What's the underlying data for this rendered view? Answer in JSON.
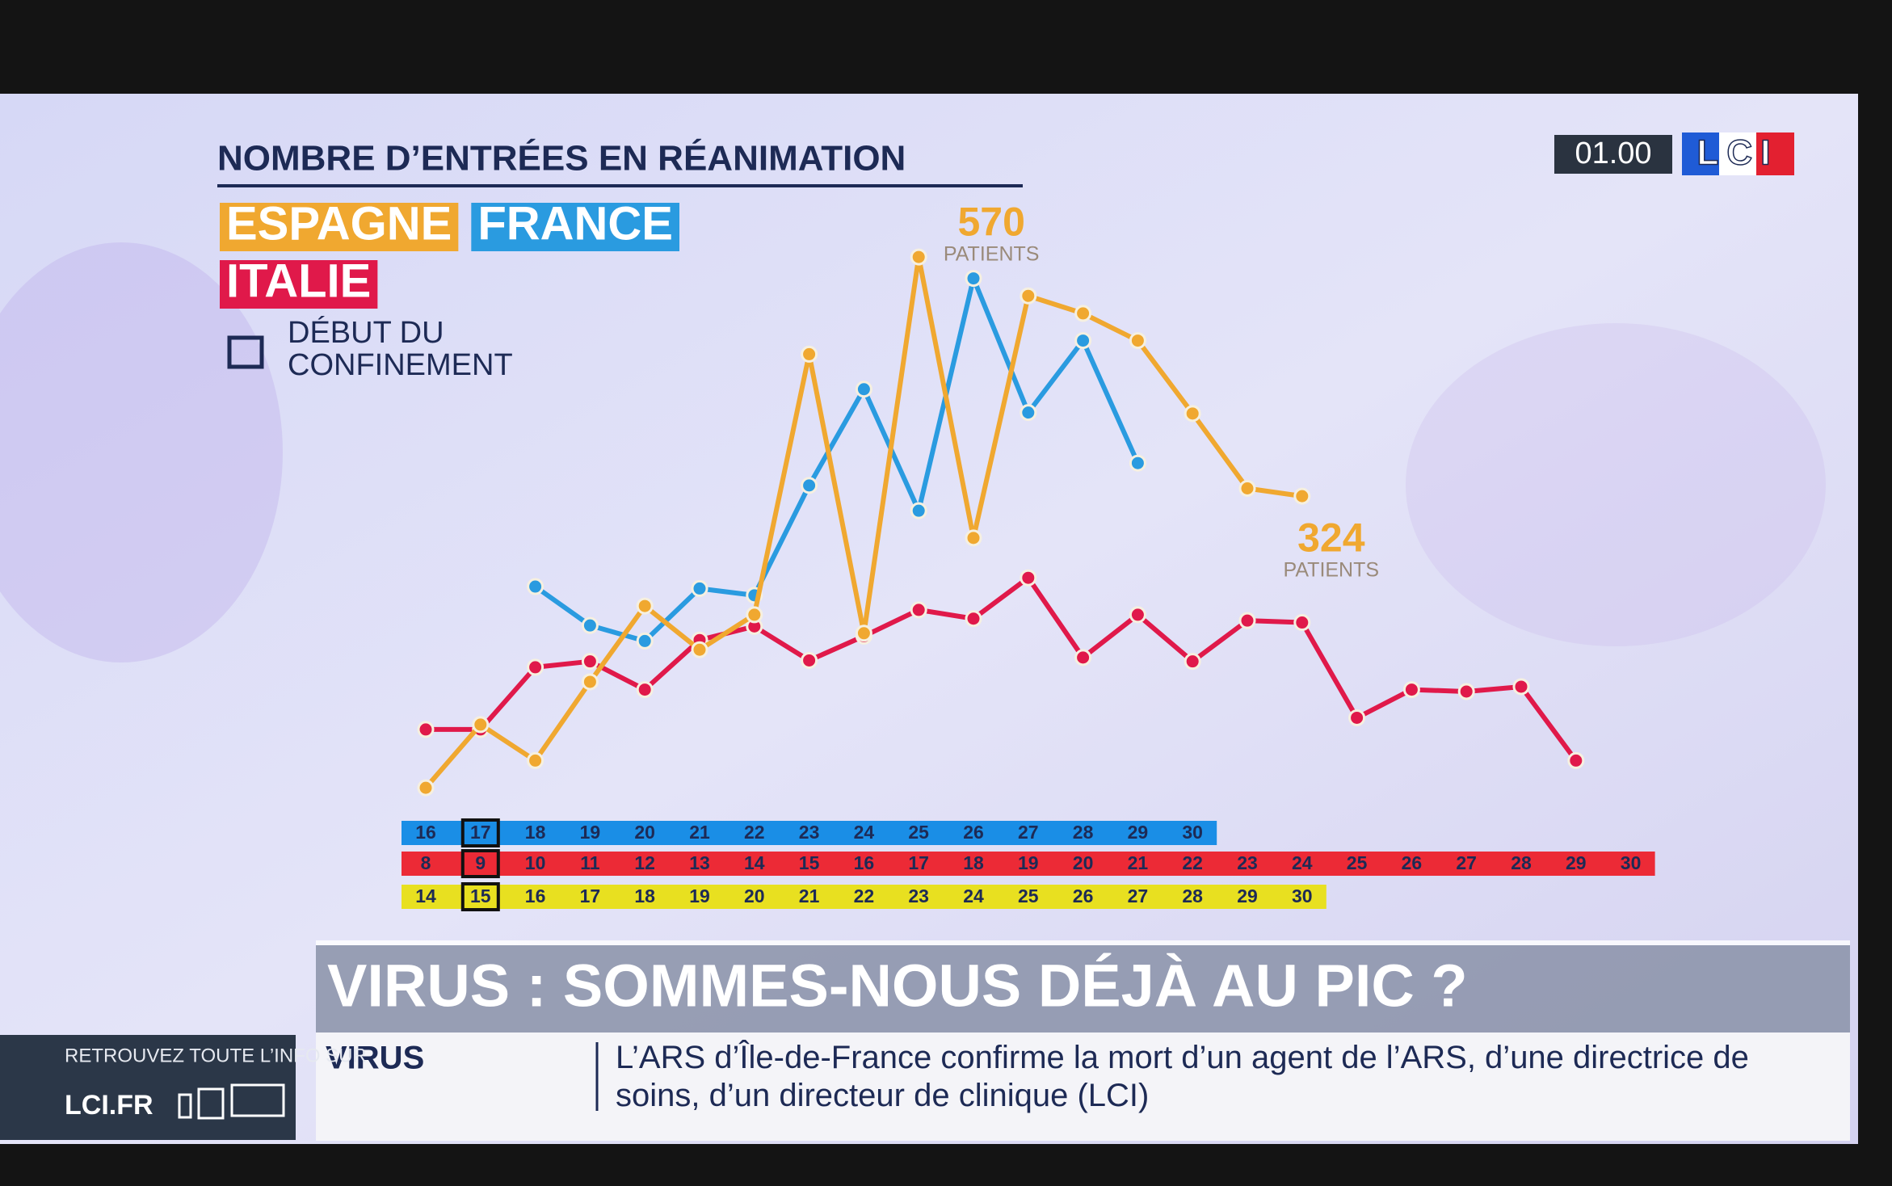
{
  "chart_data": {
    "type": "line",
    "title": "NOMBRE D’ENTRÉES EN RÉANIMATION",
    "lockdown_label": "DÉBUT DU CONFINEMENT",
    "ylim": [
      0,
      600
    ],
    "series": [
      {
        "name": "ESPAGNE",
        "color": "#f0a830",
        "axis_color": "#e8e020",
        "boxed_day": 15,
        "categories": [
          14,
          15,
          16,
          17,
          18,
          19,
          20,
          21,
          22,
          23,
          24,
          25,
          26,
          27,
          28,
          29,
          30
        ],
        "values": [
          24,
          89,
          52,
          133,
          211,
          166,
          202,
          470,
          183,
          570,
          281,
          530,
          512,
          484,
          409,
          332,
          324
        ],
        "value_labels": [
          null,
          null,
          null,
          null,
          null,
          null,
          null,
          null,
          null,
          "570",
          null,
          null,
          null,
          null,
          null,
          null,
          "324"
        ],
        "value_label_unit": "PATIENTS"
      },
      {
        "name": "FRANCE",
        "color": "#2a9be0",
        "axis_color": "#1a8ee6",
        "boxed_day": 17,
        "categories": [
          16,
          17,
          18,
          19,
          20,
          21,
          22,
          23,
          24,
          25,
          26,
          27,
          28,
          29,
          30
        ],
        "values": [
          null,
          null,
          231,
          191,
          175,
          229,
          222,
          335,
          434,
          309,
          548,
          410,
          484,
          358,
          null
        ]
      },
      {
        "name": "ITALIE",
        "color": "#e0194a",
        "axis_color": "#ec2a36",
        "boxed_day": 9,
        "categories": [
          8,
          9,
          10,
          11,
          12,
          13,
          14,
          15,
          16,
          17,
          18,
          19,
          20,
          21,
          22,
          23,
          24,
          25,
          26,
          27,
          28,
          29,
          30
        ],
        "values": [
          84,
          84,
          148,
          154,
          125,
          176,
          190,
          155,
          180,
          207,
          198,
          240,
          158,
          202,
          154,
          196,
          194,
          96,
          125,
          123,
          128,
          52,
          null
        ]
      }
    ]
  },
  "channel": {
    "clock": "01.00",
    "logo": "LCI"
  },
  "banner": {
    "headline": "VIRUS : SOMMES-NOUS DÉJÀ AU PIC ?",
    "ticker_label": "VIRUS",
    "ticker_text": "L’ARS d’Île-de-France confirme la mort d’un agent de l’ARS, d’une directrice de soins, d’un directeur de clinique (LCI)"
  },
  "promo": {
    "text": "RETROUVEZ TOUTE L’INFO SUR",
    "site": "LCI.FR"
  }
}
